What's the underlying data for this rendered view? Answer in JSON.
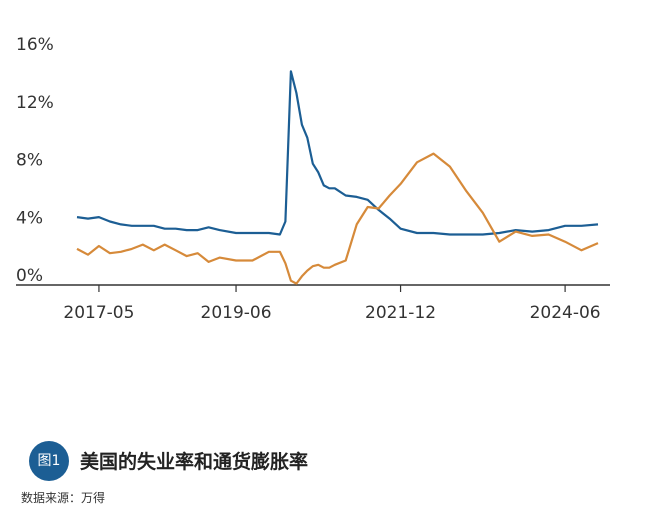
{
  "chart_data": {
    "type": "line",
    "title": "",
    "xlabel": "",
    "ylabel": "",
    "ylim": [
      0,
      16
    ],
    "y_ticks": [
      "16%",
      "12%",
      "8%",
      "4%",
      "0%"
    ],
    "x_tick_labels": [
      "2017-05",
      "2019-06",
      "2021-12",
      "2024-06"
    ],
    "x": [
      "2017-01",
      "2017-03",
      "2017-05",
      "2017-07",
      "2017-09",
      "2017-11",
      "2018-01",
      "2018-03",
      "2018-05",
      "2018-07",
      "2018-09",
      "2018-11",
      "2019-01",
      "2019-03",
      "2019-06",
      "2019-09",
      "2019-12",
      "2020-02",
      "2020-03",
      "2020-04",
      "2020-05",
      "2020-06",
      "2020-07",
      "2020-08",
      "2020-09",
      "2020-10",
      "2020-11",
      "2020-12",
      "2021-02",
      "2021-04",
      "2021-06",
      "2021-08",
      "2021-10",
      "2021-12",
      "2022-03",
      "2022-06",
      "2022-09",
      "2022-12",
      "2023-03",
      "2023-06",
      "2023-09",
      "2023-12",
      "2024-03",
      "2024-06",
      "2024-09",
      "2024-12"
    ],
    "series": [
      {
        "color": "#1c5e94",
        "values": [
          4.7,
          4.6,
          4.7,
          4.4,
          4.2,
          4.1,
          4.1,
          4.1,
          3.9,
          3.9,
          3.8,
          3.8,
          4.0,
          3.8,
          3.6,
          3.6,
          3.6,
          3.5,
          4.4,
          14.8,
          13.3,
          11.1,
          10.2,
          8.4,
          7.8,
          6.9,
          6.7,
          6.7,
          6.2,
          6.1,
          5.9,
          5.2,
          4.6,
          3.9,
          3.6,
          3.6,
          3.5,
          3.5,
          3.5,
          3.6,
          3.8,
          3.7,
          3.8,
          4.1,
          4.1,
          4.2
        ]
      },
      {
        "color": "#d68a3a",
        "values": [
          2.5,
          2.1,
          2.7,
          2.2,
          2.3,
          2.5,
          2.8,
          2.4,
          2.8,
          2.4,
          2.0,
          2.2,
          1.6,
          1.9,
          1.7,
          1.7,
          2.3,
          2.3,
          1.5,
          0.3,
          0.1,
          0.6,
          1.0,
          1.3,
          1.4,
          1.2,
          1.2,
          1.4,
          1.7,
          4.2,
          5.4,
          5.3,
          6.2,
          7.0,
          8.5,
          9.1,
          8.2,
          6.5,
          5.0,
          3.0,
          3.7,
          3.4,
          3.5,
          3.0,
          2.4,
          2.9
        ]
      }
    ]
  },
  "caption": {
    "badge": "图1",
    "title": "美国的失业率和通货膨胀率",
    "source": "数据来源：万得"
  }
}
